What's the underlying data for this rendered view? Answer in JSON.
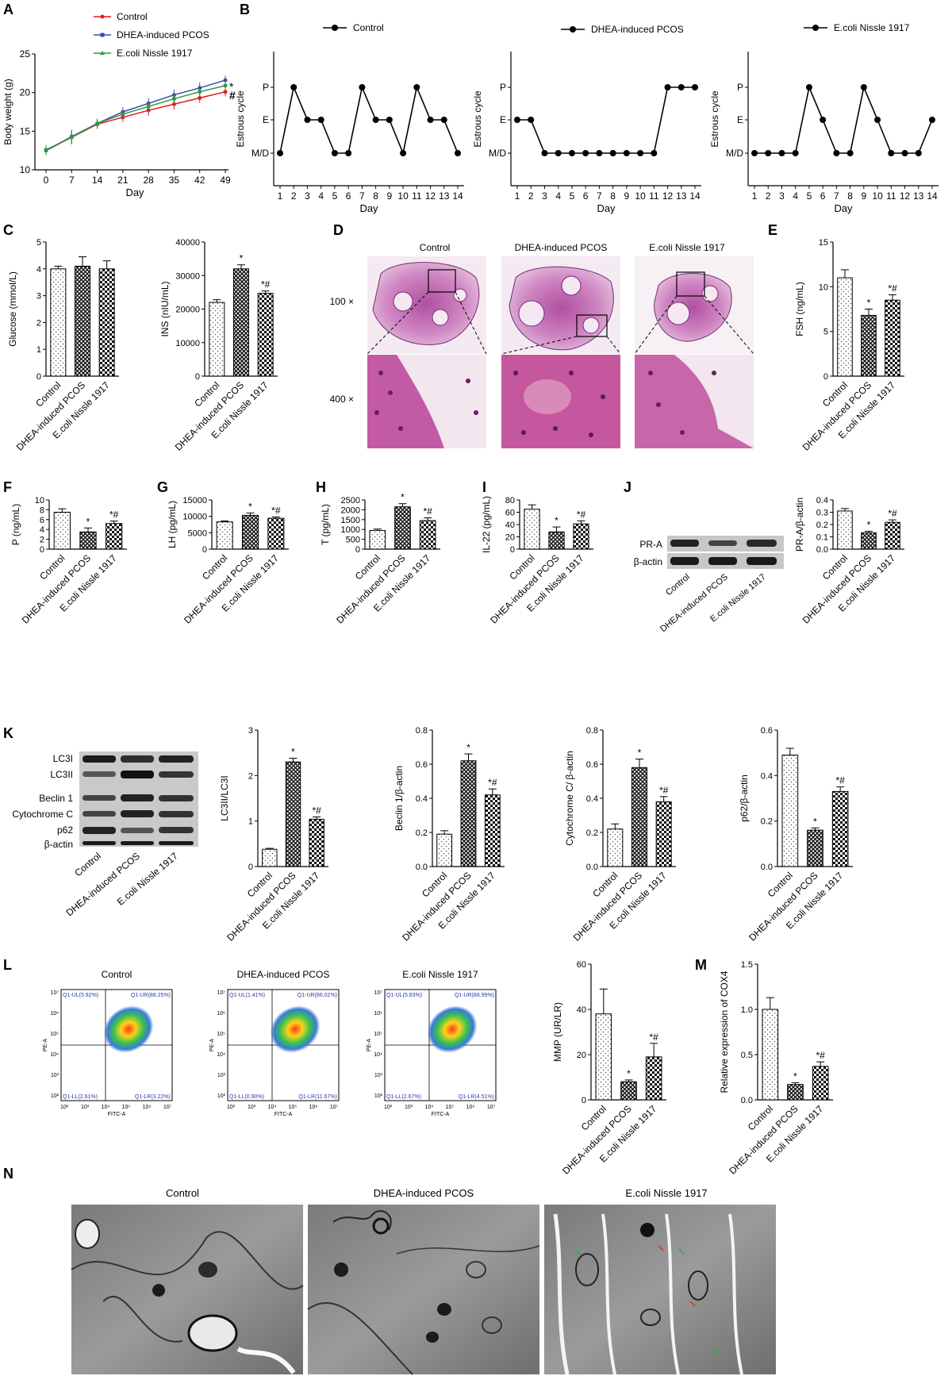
{
  "groups": [
    "Control",
    "DHEA-induced PCOS",
    "E.coli Nissle 1917"
  ],
  "colors": {
    "control": "#e41a1c",
    "pcos": "#3b4ba8",
    "ecn": "#2e9a3e",
    "ink": "#000000",
    "micro_blue": "#2b3aa8"
  },
  "panel_letters": [
    "A",
    "B",
    "C",
    "D",
    "E",
    "F",
    "G",
    "H",
    "I",
    "J",
    "K",
    "L",
    "M",
    "N"
  ],
  "panel_A": {
    "legend": [
      "Control",
      "DHEA-induced PCOS",
      "E.coli Nissle 1917"
    ],
    "marks": [
      "*",
      "#"
    ]
  },
  "panel_B": {
    "titles": [
      "Control",
      "DHEA-induced PCOS",
      "E.coli Nissle 1917"
    ],
    "ylabel": "Estrous cycle",
    "xlabel": "Day",
    "yticks": [
      "M/D",
      "E",
      "P"
    ]
  },
  "panel_D": {
    "titles": [
      "Control",
      "DHEA-induced PCOS",
      "E.coli Nissle 1917"
    ],
    "row_labels": [
      "100 ×",
      "400 ×"
    ]
  },
  "panel_J": {
    "blot_labels": [
      "PR-A",
      "β-actin"
    ]
  },
  "panel_K": {
    "blot_labels": [
      "LC3I",
      "LC3II",
      "Beclin 1",
      "Cytochrome C",
      "p62",
      "β-actin"
    ]
  },
  "panel_L": {
    "titles": [
      "Control",
      "DHEA-induced PCOS",
      "E.coli Nissle 1917"
    ],
    "quadrants": [
      [
        "Q1-UL(5.92%)",
        "Q1-UR(88.25%)",
        "Q1-LL(2.61%)",
        "Q1-LR(3.22%)"
      ],
      [
        "Q1-UL(1.41%)",
        "Q1-UR(86.02%)",
        "Q1-LL(0.90%)",
        "Q1-LR(11.67%)"
      ],
      [
        "Q1-UL(5.83%)",
        "Q1-UR(86.99%)",
        "Q1-LL(2.67%)",
        "Q1-LR(4.51%)"
      ]
    ],
    "xlabel": "FITC-A",
    "ylabel": "PE-A",
    "decade_ticks": [
      "10²",
      "10³",
      "10⁴",
      "10⁵",
      "10⁶",
      "10⁷"
    ]
  },
  "panel_N": {
    "titles": [
      "Control",
      "DHEA-induced PCOS",
      "E.coli Nissle 1917"
    ]
  },
  "chart_data": [
    {
      "id": "A",
      "type": "line",
      "xlabel": "Day",
      "ylabel": "Body weight (g)",
      "x": [
        0,
        7,
        14,
        21,
        28,
        35,
        42,
        49
      ],
      "ylim": [
        10,
        25
      ],
      "yticks": [
        10,
        15,
        20,
        25
      ],
      "series": [
        {
          "name": "Control",
          "values": [
            12.5,
            14.2,
            15.9,
            16.8,
            17.7,
            18.5,
            19.3,
            20.1
          ],
          "err": [
            0.6,
            0.9,
            0.6,
            0.6,
            0.7,
            0.7,
            0.6,
            0.6
          ]
        },
        {
          "name": "DHEA-induced PCOS",
          "values": [
            12.5,
            14.3,
            16.0,
            17.5,
            18.6,
            19.7,
            20.6,
            21.6
          ],
          "err": [
            0.6,
            0.9,
            0.6,
            0.6,
            0.7,
            0.7,
            0.7,
            0.6
          ]
        },
        {
          "name": "E.coli Nissle 1917",
          "values": [
            12.6,
            14.2,
            16.0,
            17.2,
            18.2,
            19.2,
            20.1,
            20.9
          ],
          "err": [
            0.6,
            0.9,
            0.6,
            0.6,
            0.7,
            0.7,
            0.6,
            0.6
          ]
        }
      ]
    },
    {
      "id": "B1",
      "type": "line",
      "title": "Control",
      "days": [
        1,
        2,
        3,
        4,
        5,
        6,
        7,
        8,
        9,
        10,
        11,
        12,
        13,
        14
      ],
      "states": [
        0,
        2,
        1,
        1,
        0,
        0,
        2,
        1,
        1,
        0,
        2,
        1,
        1,
        0
      ]
    },
    {
      "id": "B2",
      "type": "line",
      "title": "DHEA-induced PCOS",
      "days": [
        1,
        2,
        3,
        4,
        5,
        6,
        7,
        8,
        9,
        10,
        11,
        12,
        13,
        14
      ],
      "states": [
        1,
        1,
        0,
        0,
        0,
        0,
        0,
        0,
        0,
        0,
        0,
        2,
        2,
        2
      ]
    },
    {
      "id": "B3",
      "type": "line",
      "title": "E.coli Nissle 1917",
      "days": [
        1,
        2,
        3,
        4,
        5,
        6,
        7,
        8,
        9,
        10,
        11,
        12,
        13,
        14
      ],
      "states": [
        0,
        0,
        0,
        0,
        2,
        1,
        0,
        0,
        2,
        1,
        0,
        0,
        0,
        1
      ]
    },
    {
      "id": "C1",
      "type": "bar",
      "ylabel": "Glucose (mmol/L)",
      "ylim": [
        0,
        5
      ],
      "yticks": [
        0,
        1,
        2,
        3,
        4,
        5
      ],
      "values": [
        4.0,
        4.1,
        4.0
      ],
      "err": [
        0.1,
        0.35,
        0.3
      ],
      "marks": [
        "",
        "",
        ""
      ]
    },
    {
      "id": "C2",
      "type": "bar",
      "ylabel": "INS (nIU/mL)",
      "ylim": [
        0,
        40000
      ],
      "yticks": [
        0,
        10000,
        20000,
        30000,
        40000
      ],
      "values": [
        22000,
        32000,
        24700
      ],
      "err": [
        800,
        1200,
        700
      ],
      "marks": [
        "",
        "*",
        "*#"
      ]
    },
    {
      "id": "E",
      "type": "bar",
      "ylabel": "FSH (ng/mL)",
      "ylim": [
        0,
        15
      ],
      "yticks": [
        0,
        5,
        10,
        15
      ],
      "values": [
        11.0,
        6.8,
        8.5
      ],
      "err": [
        0.9,
        0.7,
        0.6
      ],
      "marks": [
        "",
        "*",
        "*#"
      ]
    },
    {
      "id": "F",
      "type": "bar",
      "ylabel": "P (ng/mL)",
      "ylim": [
        0,
        10
      ],
      "yticks": [
        0,
        2,
        4,
        6,
        8,
        10
      ],
      "values": [
        7.5,
        3.5,
        5.2
      ],
      "err": [
        0.7,
        0.8,
        0.5
      ],
      "marks": [
        "",
        "*",
        "*#"
      ]
    },
    {
      "id": "G",
      "type": "bar",
      "ylabel": "LH (pg/mL)",
      "ylim": [
        0,
        15000
      ],
      "yticks": [
        0,
        5000,
        10000,
        15000
      ],
      "values": [
        8300,
        10300,
        9400
      ],
      "err": [
        300,
        700,
        400
      ],
      "marks": [
        "",
        "*",
        "*#"
      ]
    },
    {
      "id": "H",
      "type": "bar",
      "ylabel": "T (pg/mL)",
      "ylim": [
        0,
        2500
      ],
      "yticks": [
        0,
        500,
        1000,
        1500,
        2000,
        2500
      ],
      "values": [
        950,
        2150,
        1450
      ],
      "err": [
        70,
        160,
        140
      ],
      "marks": [
        "",
        "*",
        "*#"
      ]
    },
    {
      "id": "I",
      "type": "bar",
      "ylabel": "IL-22 (pg/mL)",
      "ylim": [
        0,
        80
      ],
      "yticks": [
        0,
        20,
        40,
        60,
        80
      ],
      "values": [
        65,
        28,
        41
      ],
      "err": [
        7,
        8,
        5
      ],
      "marks": [
        "",
        "*",
        "*#"
      ]
    },
    {
      "id": "J",
      "type": "bar",
      "ylabel": "PR-A/β-actin",
      "ylim": [
        0,
        0.4
      ],
      "yticks": [
        0.0,
        0.1,
        0.2,
        0.3,
        0.4
      ],
      "values": [
        0.31,
        0.133,
        0.218
      ],
      "err": [
        0.02,
        0.012,
        0.02
      ],
      "marks": [
        "",
        "*",
        "*#"
      ]
    },
    {
      "id": "K1",
      "type": "bar",
      "ylabel": "LC3II/LC3I",
      "ylim": [
        0,
        3
      ],
      "yticks": [
        0,
        1,
        2,
        3
      ],
      "values": [
        0.38,
        2.3,
        1.04
      ],
      "err": [
        0.02,
        0.08,
        0.05
      ],
      "marks": [
        "",
        "*",
        "*#"
      ]
    },
    {
      "id": "K2",
      "type": "bar",
      "ylabel": "Beclin 1/β-actin",
      "ylim": [
        0,
        0.8
      ],
      "yticks": [
        0.0,
        0.2,
        0.4,
        0.6,
        0.8
      ],
      "values": [
        0.19,
        0.62,
        0.42
      ],
      "err": [
        0.02,
        0.04,
        0.035
      ],
      "marks": [
        "",
        "*",
        "*#"
      ]
    },
    {
      "id": "K3",
      "type": "bar",
      "ylabel": "Cytochrome C/ β-actin",
      "ylim": [
        0,
        0.8
      ],
      "yticks": [
        0.0,
        0.2,
        0.4,
        0.6,
        0.8
      ],
      "values": [
        0.22,
        0.58,
        0.38
      ],
      "err": [
        0.03,
        0.05,
        0.03
      ],
      "marks": [
        "",
        "*",
        "*#"
      ]
    },
    {
      "id": "K4",
      "type": "bar",
      "ylabel": "p62/β-actin",
      "ylim": [
        0,
        0.6
      ],
      "yticks": [
        0.0,
        0.2,
        0.4,
        0.6
      ],
      "values": [
        0.49,
        0.16,
        0.33
      ],
      "err": [
        0.03,
        0.01,
        0.02
      ],
      "marks": [
        "",
        "*",
        "*#"
      ]
    },
    {
      "id": "L",
      "type": "bar",
      "ylabel": "MMP (UR/LR)",
      "ylim": [
        0,
        60
      ],
      "yticks": [
        0,
        20,
        40,
        60
      ],
      "values": [
        38,
        8,
        19
      ],
      "err": [
        11,
        0.8,
        6
      ],
      "marks": [
        "",
        "*",
        "*#"
      ]
    },
    {
      "id": "M",
      "type": "bar",
      "ylabel": "Relative expression of COX4",
      "ylim": [
        0,
        1.5
      ],
      "yticks": [
        0.0,
        0.5,
        1.0,
        1.5
      ],
      "values": [
        1.0,
        0.17,
        0.37
      ],
      "err": [
        0.13,
        0.02,
        0.05
      ],
      "marks": [
        "",
        "*",
        "*#"
      ]
    }
  ]
}
